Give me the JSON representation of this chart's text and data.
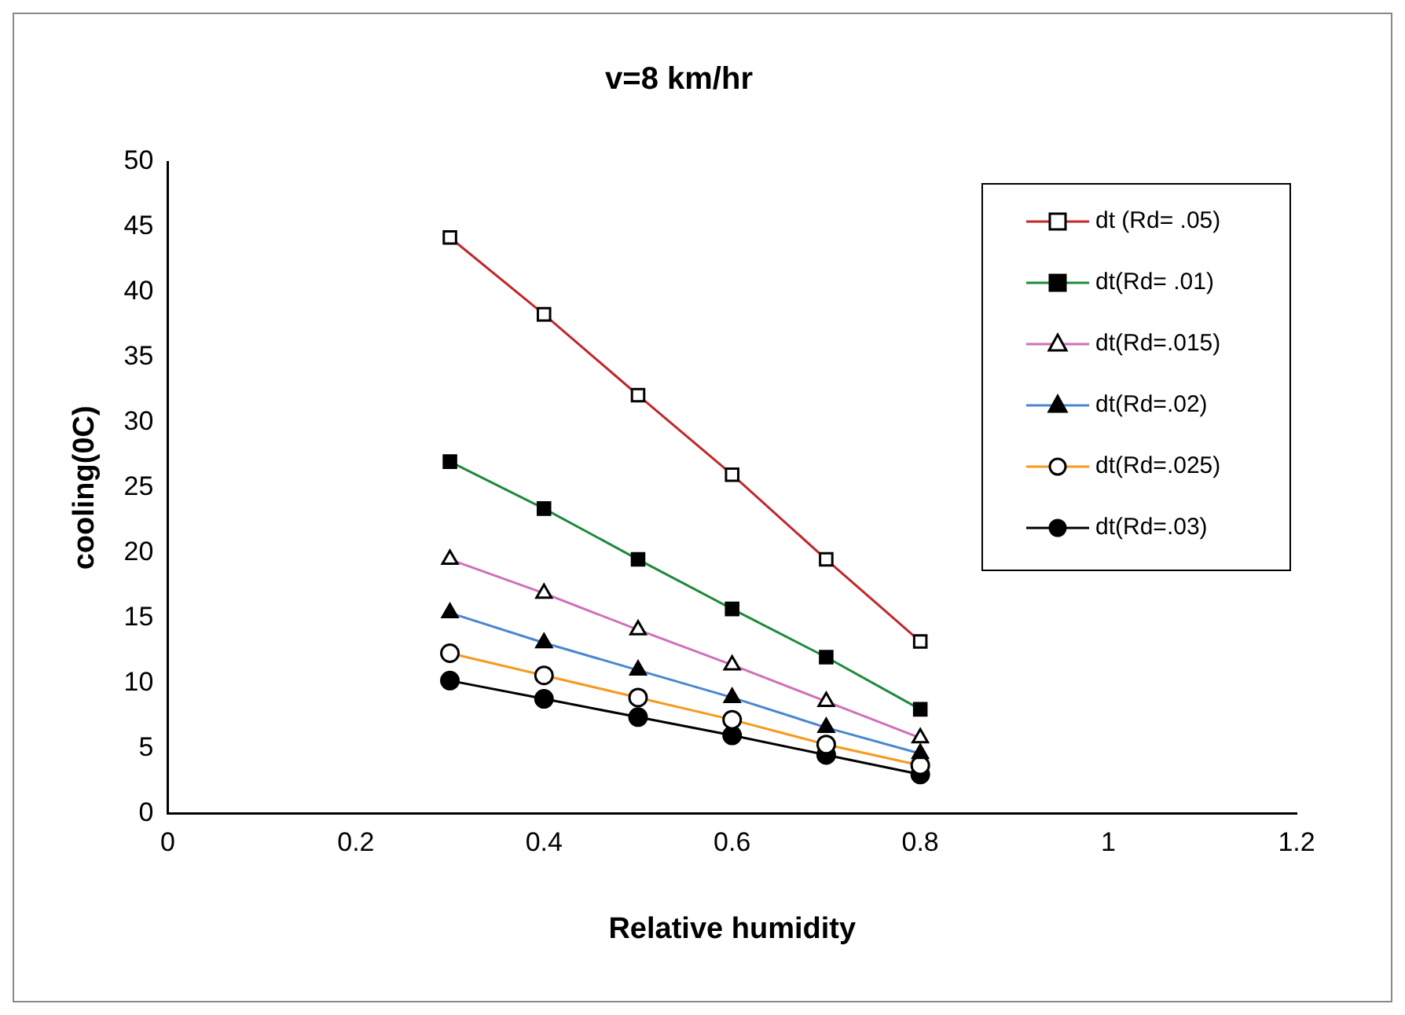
{
  "chart_data": {
    "type": "line",
    "title": "v=8 km/hr",
    "xlabel": "Relative humidity",
    "ylabel": "cooling(0C)",
    "x": [
      0.3,
      0.4,
      0.5,
      0.6,
      0.7,
      0.8
    ],
    "xlim": [
      0,
      1.2
    ],
    "xticks": [
      0,
      0.2,
      0.4,
      0.6,
      0.8,
      1,
      1.2
    ],
    "ylim": [
      0,
      50
    ],
    "yticks": [
      0,
      5,
      10,
      15,
      20,
      25,
      30,
      35,
      40,
      45,
      50
    ],
    "grid": false,
    "legend": "top right",
    "line_style": "solid",
    "series": [
      {
        "name": "dt (Rd= .05)",
        "color": "#c0282a",
        "marker": "square",
        "values": [
          44.2,
          38.3,
          32.1,
          26.0,
          19.5,
          13.2
        ]
      },
      {
        "name": "dt(Rd= .01)",
        "color": "#1e8a3a",
        "marker": "square",
        "values": [
          27.0,
          23.4,
          19.5,
          15.7,
          12.0,
          8.0
        ]
      },
      {
        "name": "dt(Rd=.015)",
        "color": "#d070b8",
        "marker": "triangle",
        "values": [
          19.5,
          16.9,
          14.1,
          11.4,
          8.6,
          5.8
        ]
      },
      {
        "name": "dt(Rd=.02)",
        "color": "#4a86d0",
        "marker": "triangle",
        "values": [
          15.4,
          13.1,
          11.0,
          8.9,
          6.6,
          4.6
        ]
      },
      {
        "name": "dt(Rd=.025)",
        "color": "#f59a1c",
        "marker": "circle",
        "values": [
          12.3,
          10.6,
          8.9,
          7.2,
          5.3,
          3.7
        ]
      },
      {
        "name": "dt(Rd=.03)",
        "color": "#000000",
        "marker": "circle",
        "values": [
          10.2,
          8.8,
          7.4,
          6.0,
          4.5,
          3.0
        ]
      }
    ]
  }
}
